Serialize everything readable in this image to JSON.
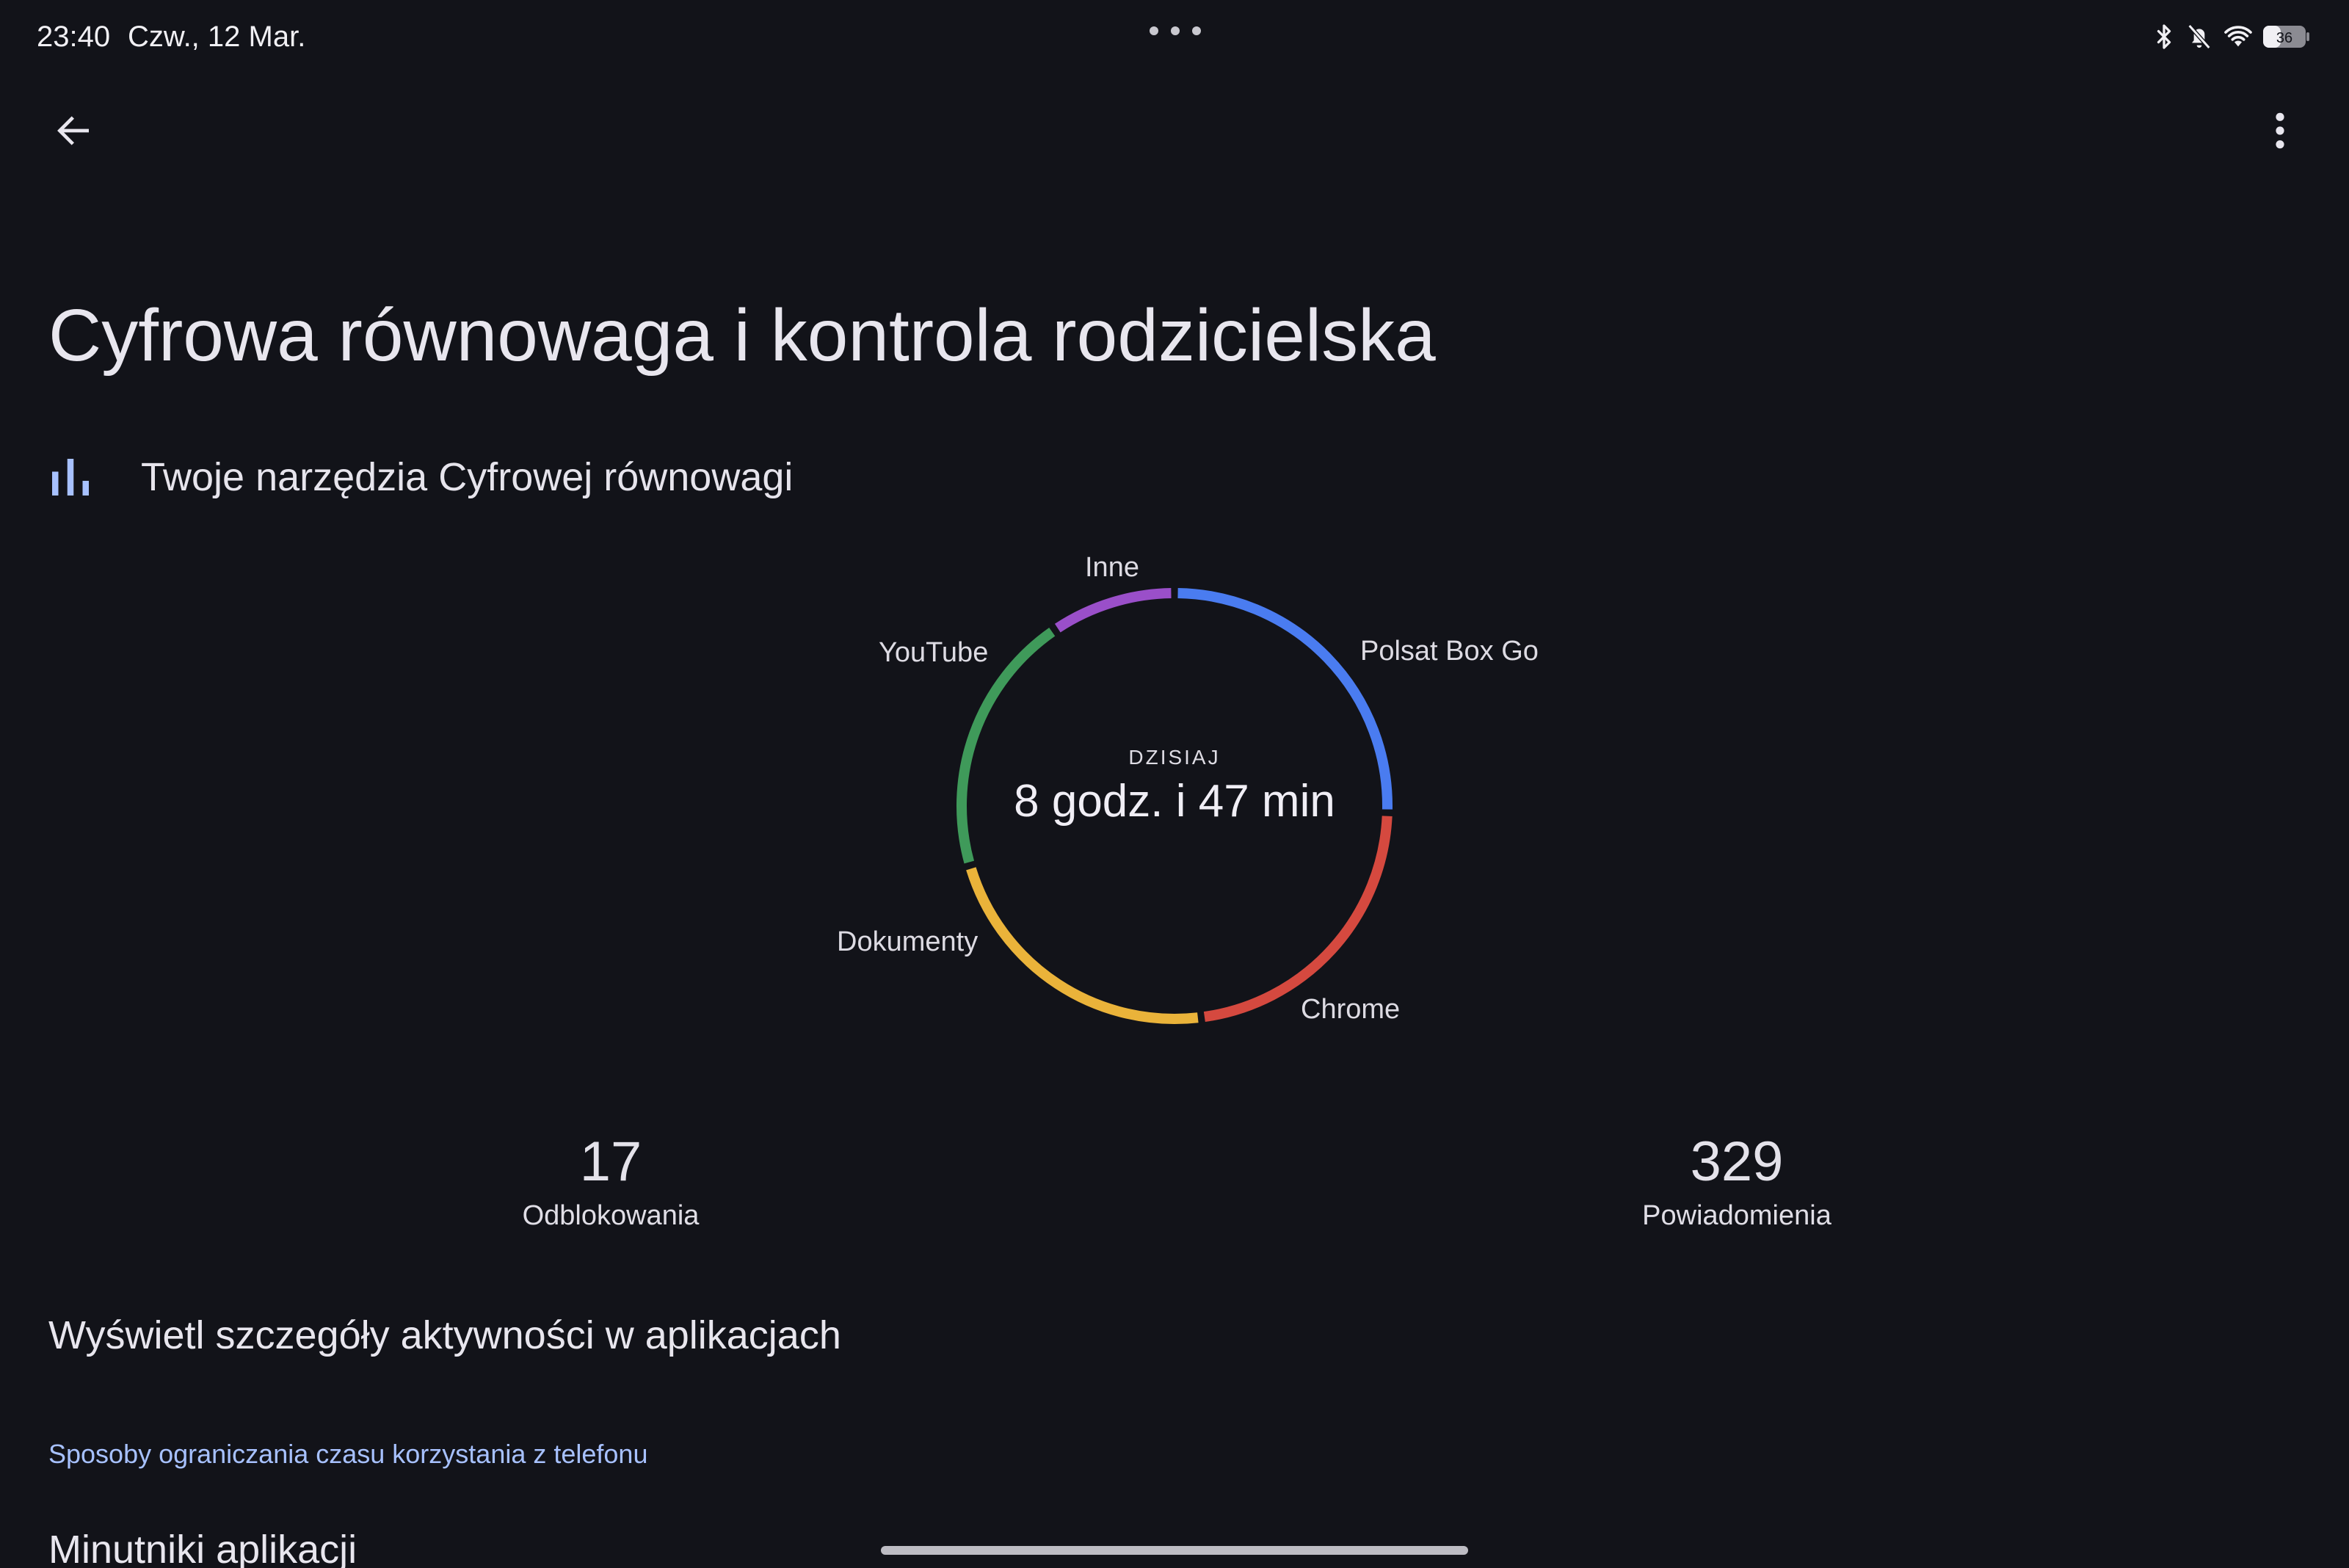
{
  "status_bar": {
    "time": "23:40",
    "date": "Czw., 12 Mar.",
    "battery": "36",
    "icons": [
      "bluetooth-icon",
      "bell-off-icon",
      "wifi-icon",
      "battery-icon"
    ]
  },
  "app_bar": {
    "back_icon": "arrow-back-icon",
    "more_icon": "more-vert-icon"
  },
  "page": {
    "title": "Cyfrowa równowaga i kontrola rodzicielska",
    "tools_label": "Twoje narzędzia Cyfrowej równowagi",
    "tools_icon": "bar-chart-icon"
  },
  "usage": {
    "caption": "DZISIAJ",
    "total": "8 godz. i 47 min",
    "segments": [
      {
        "label": "Polsat Box Go",
        "color": "#4a7cf0",
        "fraction": 0.255
      },
      {
        "label": "Chrome",
        "color": "#d5493f",
        "fraction": 0.225
      },
      {
        "label": "Dokumenty",
        "color": "#eab33a",
        "fraction": 0.225
      },
      {
        "label": "YouTube",
        "color": "#3f9a5a",
        "fraction": 0.2
      },
      {
        "label": "Inne",
        "color": "#9a4fc9",
        "fraction": 0.095
      }
    ]
  },
  "stats": {
    "unlocks_value": "17",
    "unlocks_label": "Odblokowania",
    "notifications_value": "329",
    "notifications_label": "Powiadomienia"
  },
  "details_link": "Wyświetl szczegóły aktywności w aplikacjach",
  "section_header": "Sposoby ograniczania czasu korzystania z telefonu",
  "next_item": "Minutniki aplikacji"
}
